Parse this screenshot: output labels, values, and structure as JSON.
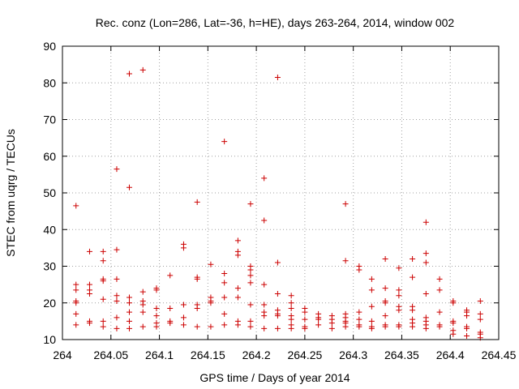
{
  "chart_data": {
    "type": "scatter",
    "title": "Rec. conz (Lon=286, Lat=-36, h=HE), days 263-264, 2014, window 002",
    "xlabel": "GPS time / Days of year 2014",
    "ylabel": "STEC from uqrg / TECUs",
    "xlim": [
      264,
      264.45
    ],
    "ylim": [
      10,
      90
    ],
    "x_ticks": [
      264,
      264.05,
      264.1,
      264.15,
      264.2,
      264.25,
      264.3,
      264.35,
      264.4,
      264.45
    ],
    "x_tick_labels": [
      "264",
      "264.05",
      "264.1",
      "264.15",
      "264.2",
      "264.25",
      "264.3",
      "264.35",
      "264.4",
      "264.45"
    ],
    "y_ticks": [
      10,
      20,
      30,
      40,
      50,
      60,
      70,
      80,
      90
    ],
    "y_tick_labels": [
      "10",
      "20",
      "30",
      "40",
      "50",
      "60",
      "70",
      "80",
      "90"
    ],
    "grid": true,
    "marker": "plus",
    "color": "#cc0000",
    "series": [
      {
        "points": [
          [
            264.014,
            46.5
          ],
          [
            264.014,
            25.0
          ],
          [
            264.014,
            23.5
          ],
          [
            264.014,
            20.5
          ],
          [
            264.014,
            20.0
          ],
          [
            264.014,
            17.0
          ],
          [
            264.014,
            14.0
          ],
          [
            264.028,
            34.0
          ],
          [
            264.028,
            25.0
          ],
          [
            264.028,
            23.5
          ],
          [
            264.028,
            22.5
          ],
          [
            264.028,
            15.0
          ],
          [
            264.028,
            14.5
          ],
          [
            264.042,
            34.0
          ],
          [
            264.042,
            31.5
          ],
          [
            264.042,
            26.5
          ],
          [
            264.042,
            26.0
          ],
          [
            264.042,
            21.0
          ],
          [
            264.042,
            15.0
          ],
          [
            264.042,
            13.5
          ],
          [
            264.056,
            56.5
          ],
          [
            264.056,
            34.5
          ],
          [
            264.056,
            26.5
          ],
          [
            264.056,
            22.0
          ],
          [
            264.056,
            20.5
          ],
          [
            264.056,
            16.0
          ],
          [
            264.056,
            13.0
          ],
          [
            264.069,
            82.5
          ],
          [
            264.069,
            51.5
          ],
          [
            264.069,
            21.5
          ],
          [
            264.069,
            20.0
          ],
          [
            264.069,
            17.5
          ],
          [
            264.069,
            15.0
          ],
          [
            264.069,
            13.0
          ],
          [
            264.083,
            83.5
          ],
          [
            264.083,
            23.0
          ],
          [
            264.083,
            20.5
          ],
          [
            264.083,
            19.5
          ],
          [
            264.083,
            17.5
          ],
          [
            264.083,
            13.5
          ],
          [
            264.097,
            24.0
          ],
          [
            264.097,
            23.5
          ],
          [
            264.097,
            18.5
          ],
          [
            264.097,
            16.5
          ],
          [
            264.097,
            14.5
          ],
          [
            264.097,
            13.5
          ],
          [
            264.111,
            27.5
          ],
          [
            264.111,
            18.5
          ],
          [
            264.111,
            15.0
          ],
          [
            264.111,
            14.5
          ],
          [
            264.125,
            36.0
          ],
          [
            264.125,
            35.0
          ],
          [
            264.125,
            19.5
          ],
          [
            264.125,
            16.0
          ],
          [
            264.125,
            14.0
          ],
          [
            264.139,
            47.5
          ],
          [
            264.139,
            27.0
          ],
          [
            264.139,
            26.5
          ],
          [
            264.139,
            19.5
          ],
          [
            264.139,
            18.5
          ],
          [
            264.139,
            13.5
          ],
          [
            264.153,
            30.5
          ],
          [
            264.153,
            21.5
          ],
          [
            264.153,
            20.5
          ],
          [
            264.153,
            20.0
          ],
          [
            264.153,
            13.5
          ],
          [
            264.167,
            64.0
          ],
          [
            264.167,
            28.0
          ],
          [
            264.167,
            25.5
          ],
          [
            264.167,
            21.5
          ],
          [
            264.167,
            17.0
          ],
          [
            264.167,
            14.0
          ],
          [
            264.181,
            37.0
          ],
          [
            264.181,
            34.0
          ],
          [
            264.181,
            33.0
          ],
          [
            264.181,
            24.0
          ],
          [
            264.181,
            21.5
          ],
          [
            264.181,
            15.0
          ],
          [
            264.181,
            14.0
          ],
          [
            264.194,
            47.0
          ],
          [
            264.194,
            30.0
          ],
          [
            264.194,
            29.0
          ],
          [
            264.194,
            27.5
          ],
          [
            264.194,
            25.5
          ],
          [
            264.194,
            19.5
          ],
          [
            264.194,
            15.0
          ],
          [
            264.194,
            13.5
          ],
          [
            264.208,
            54.0
          ],
          [
            264.208,
            42.5
          ],
          [
            264.208,
            25.0
          ],
          [
            264.208,
            19.5
          ],
          [
            264.208,
            17.5
          ],
          [
            264.208,
            16.5
          ],
          [
            264.208,
            13.0
          ],
          [
            264.222,
            81.5
          ],
          [
            264.222,
            31.0
          ],
          [
            264.222,
            22.5
          ],
          [
            264.222,
            18.0
          ],
          [
            264.222,
            17.0
          ],
          [
            264.222,
            16.5
          ],
          [
            264.222,
            13.0
          ],
          [
            264.236,
            22.0
          ],
          [
            264.236,
            20.0
          ],
          [
            264.236,
            18.5
          ],
          [
            264.236,
            16.5
          ],
          [
            264.236,
            15.5
          ],
          [
            264.236,
            14.0
          ],
          [
            264.236,
            13.0
          ],
          [
            264.25,
            18.5
          ],
          [
            264.25,
            17.5
          ],
          [
            264.25,
            15.5
          ],
          [
            264.25,
            13.5
          ],
          [
            264.25,
            13.0
          ],
          [
            264.264,
            17.0
          ],
          [
            264.264,
            16.0
          ],
          [
            264.264,
            15.5
          ],
          [
            264.264,
            14.0
          ],
          [
            264.278,
            16.5
          ],
          [
            264.278,
            15.5
          ],
          [
            264.278,
            14.5
          ],
          [
            264.278,
            13.0
          ],
          [
            264.292,
            47.0
          ],
          [
            264.292,
            31.5
          ],
          [
            264.292,
            17.0
          ],
          [
            264.292,
            16.0
          ],
          [
            264.292,
            15.0
          ],
          [
            264.292,
            14.5
          ],
          [
            264.292,
            13.5
          ],
          [
            264.306,
            30.0
          ],
          [
            264.306,
            29.0
          ],
          [
            264.306,
            17.5
          ],
          [
            264.306,
            15.5
          ],
          [
            264.306,
            14.0
          ],
          [
            264.306,
            13.5
          ],
          [
            264.319,
            26.5
          ],
          [
            264.319,
            23.5
          ],
          [
            264.319,
            19.0
          ],
          [
            264.319,
            15.0
          ],
          [
            264.319,
            13.5
          ],
          [
            264.319,
            13.0
          ],
          [
            264.333,
            32.0
          ],
          [
            264.333,
            24.0
          ],
          [
            264.333,
            20.5
          ],
          [
            264.333,
            20.0
          ],
          [
            264.333,
            16.5
          ],
          [
            264.333,
            14.0
          ],
          [
            264.333,
            13.5
          ],
          [
            264.347,
            29.5
          ],
          [
            264.347,
            23.5
          ],
          [
            264.347,
            22.0
          ],
          [
            264.347,
            19.0
          ],
          [
            264.347,
            18.0
          ],
          [
            264.347,
            14.0
          ],
          [
            264.347,
            13.5
          ],
          [
            264.361,
            32.0
          ],
          [
            264.361,
            27.0
          ],
          [
            264.361,
            19.0
          ],
          [
            264.361,
            18.0
          ],
          [
            264.361,
            15.5
          ],
          [
            264.361,
            14.5
          ],
          [
            264.361,
            13.5
          ],
          [
            264.375,
            42.0
          ],
          [
            264.375,
            33.5
          ],
          [
            264.375,
            31.0
          ],
          [
            264.375,
            22.5
          ],
          [
            264.375,
            16.0
          ],
          [
            264.375,
            15.0
          ],
          [
            264.375,
            14.0
          ],
          [
            264.375,
            13.0
          ],
          [
            264.389,
            26.5
          ],
          [
            264.389,
            23.5
          ],
          [
            264.389,
            17.5
          ],
          [
            264.389,
            14.0
          ],
          [
            264.389,
            13.5
          ],
          [
            264.403,
            20.5
          ],
          [
            264.403,
            20.0
          ],
          [
            264.403,
            15.0
          ],
          [
            264.403,
            14.5
          ],
          [
            264.403,
            12.5
          ],
          [
            264.403,
            11.5
          ],
          [
            264.417,
            18.0
          ],
          [
            264.417,
            17.5
          ],
          [
            264.417,
            16.5
          ],
          [
            264.417,
            13.5
          ],
          [
            264.417,
            13.0
          ],
          [
            264.417,
            11.0
          ],
          [
            264.431,
            20.5
          ],
          [
            264.431,
            17.0
          ],
          [
            264.431,
            15.5
          ],
          [
            264.431,
            12.0
          ],
          [
            264.431,
            11.5
          ],
          [
            264.431,
            10.5
          ]
        ]
      }
    ]
  }
}
